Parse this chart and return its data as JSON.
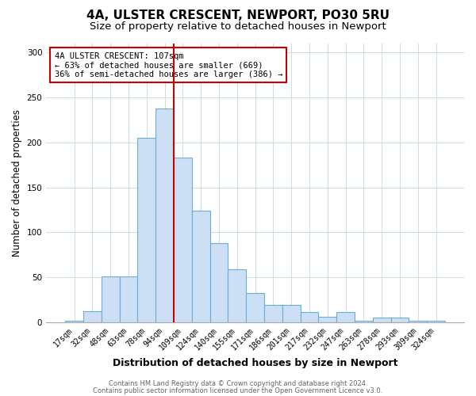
{
  "title": "4A, ULSTER CRESCENT, NEWPORT, PO30 5RU",
  "subtitle": "Size of property relative to detached houses in Newport",
  "xlabel": "Distribution of detached houses by size in Newport",
  "ylabel": "Number of detached properties",
  "categories": [
    "17sqm",
    "32sqm",
    "48sqm",
    "63sqm",
    "78sqm",
    "94sqm",
    "109sqm",
    "124sqm",
    "140sqm",
    "155sqm",
    "171sqm",
    "186sqm",
    "201sqm",
    "217sqm",
    "232sqm",
    "247sqm",
    "263sqm",
    "278sqm",
    "293sqm",
    "309sqm",
    "324sqm"
  ],
  "values": [
    2,
    12,
    51,
    51,
    205,
    238,
    183,
    124,
    88,
    59,
    32,
    19,
    19,
    11,
    6,
    11,
    2,
    5,
    5,
    2,
    2
  ],
  "bar_color": "#ccdff4",
  "bar_edgecolor": "#6aaed6",
  "bar_linewidth": 0.8,
  "vline_x_index": 5.5,
  "vline_color": "#cc0000",
  "ylim": [
    0,
    310
  ],
  "yticks": [
    0,
    50,
    100,
    150,
    200,
    250,
    300
  ],
  "annotation_text": "4A ULSTER CRESCENT: 107sqm\n← 63% of detached houses are smaller (669)\n36% of semi-detached houses are larger (386) →",
  "annotation_box_color": "#ffffff",
  "annotation_box_edgecolor": "#cc0000",
  "footnote1": "Contains HM Land Registry data © Crown copyright and database right 2024.",
  "footnote2": "Contains public sector information licensed under the Open Government Licence v3.0.",
  "background_color": "#ffffff",
  "grid_color": "#d0dce8",
  "title_fontsize": 11,
  "subtitle_fontsize": 9.5,
  "tick_fontsize": 7,
  "ylabel_fontsize": 8.5,
  "xlabel_fontsize": 9,
  "footnote_fontsize": 6,
  "ann_fontsize": 7.5
}
